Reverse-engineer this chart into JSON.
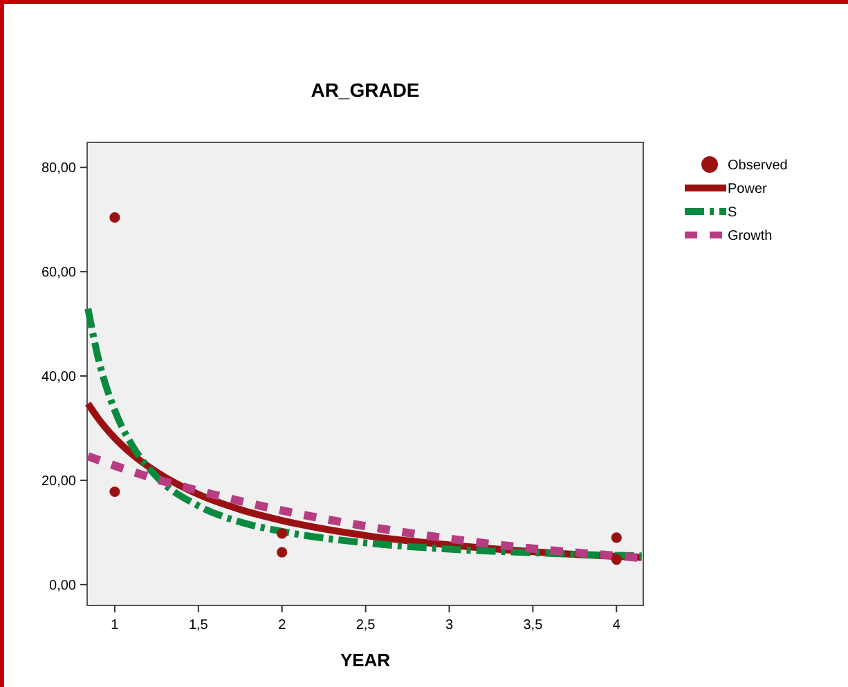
{
  "chart_data": {
    "type": "scatter",
    "title": "AR_GRADE",
    "xlabel": "YEAR",
    "xlim": [
      0.835,
      4.16
    ],
    "ylim": [
      -4,
      84.8
    ],
    "xticks": [
      1,
      {
        "value": 1.5,
        "label": "1,5"
      },
      2,
      {
        "value": 2.5,
        "label": "2,5"
      },
      3,
      {
        "value": 3.5,
        "label": "3,5"
      },
      4
    ],
    "yticks": [
      {
        "value": 0,
        "label": "0,00"
      },
      {
        "value": 20,
        "label": "20,00"
      },
      {
        "value": 40,
        "label": "40,00"
      },
      {
        "value": 60,
        "label": "60,00"
      },
      {
        "value": 80,
        "label": "80,00"
      }
    ],
    "legend": "right",
    "grid": false,
    "series": [
      {
        "name": "Observed",
        "marker": "circle",
        "color": "#9b1111",
        "x": [
          1,
          1,
          2,
          2,
          4,
          4
        ],
        "values": [
          70.4,
          17.8,
          9.8,
          6.2,
          9.0,
          4.8
        ]
      },
      {
        "name": "Power",
        "type": "line",
        "line_style": "solid",
        "color": "#9b1111",
        "x": [
          0.84,
          0.9,
          1,
          1.1,
          1.25,
          1.5,
          1.75,
          2,
          2.5,
          3,
          3.5,
          4,
          4.15
        ],
        "values": [
          34.7,
          31.9,
          28.1,
          25.1,
          21.6,
          17.3,
          14.4,
          12.3,
          9.4,
          7.6,
          6.3,
          5.4,
          5.2
        ]
      },
      {
        "name": "S",
        "type": "line",
        "line_style": "dashed",
        "color": "#0a8a3e",
        "x": [
          0.84,
          0.9,
          1,
          1.1,
          1.25,
          1.5,
          1.75,
          2,
          2.5,
          3,
          3.5,
          4,
          4.15
        ],
        "values": [
          52.9,
          43.6,
          33.4,
          26.9,
          20.7,
          15.1,
          12.0,
          10.2,
          8.0,
          6.8,
          6.1,
          5.6,
          5.5
        ]
      },
      {
        "name": "Growth",
        "type": "line",
        "line_style": "dotted",
        "color": "#b83c82",
        "x": [
          0.84,
          1,
          1.25,
          1.5,
          2,
          2.5,
          3,
          3.5,
          4,
          4.15
        ],
        "values": [
          24.6,
          22.8,
          20.2,
          18.0,
          14.2,
          11.2,
          8.8,
          6.9,
          5.5,
          5.1
        ]
      }
    ]
  }
}
